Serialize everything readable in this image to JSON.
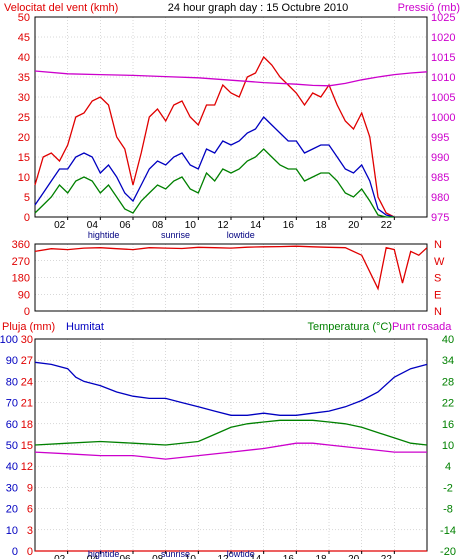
{
  "title": "24 hour graph day : 15 Octubre 2010",
  "colors": {
    "wind_gust": "#e00000",
    "wind_avg": "#0000c0",
    "wind_min": "#008000",
    "pressure": "#cc00cc",
    "direction": "#e00000",
    "humidity": "#0000c0",
    "temperature": "#008000",
    "dewpoint": "#cc00cc",
    "rain": "#e00000",
    "axis_text": "#000000",
    "frame": "#000000",
    "grid": "#b0b0b0"
  },
  "x_ticks": [
    "02",
    "04",
    "06",
    "08",
    "10",
    "12",
    "14",
    "16",
    "18",
    "20",
    "22"
  ],
  "x_events": [
    "hightide",
    "sunrise",
    "lowtide"
  ],
  "panel1": {
    "left_title": "Velocitat del vent (kmh)",
    "right_title": "Pressió (mb)"
  },
  "panel2": {
    "directions": [
      "N",
      "W",
      "S",
      "E",
      "N"
    ]
  },
  "panel3": {
    "rain_title": "Pluja (mm)",
    "humidity_title": "Humitat",
    "temp_title": "Temperatura (°C)",
    "dew_title": "Punt rosada"
  },
  "chart_data": [
    {
      "type": "line",
      "title": "",
      "xlabel": "",
      "x_unit": "hour",
      "xlim": [
        0,
        24
      ],
      "ylim": [
        0,
        50
      ],
      "y_ticks": [
        0,
        5,
        10,
        15,
        20,
        25,
        30,
        35,
        40,
        45,
        50
      ],
      "y2lim": [
        975,
        1025
      ],
      "y2_ticks": [
        975,
        980,
        985,
        990,
        995,
        1000,
        1005,
        1010,
        1015,
        1020,
        1025
      ],
      "grid": true,
      "series": [
        {
          "role": "wind_gust",
          "axis": "left",
          "x": [
            0,
            0.5,
            1,
            1.5,
            2,
            2.5,
            3,
            3.5,
            4,
            4.5,
            5,
            5.5,
            6,
            6.5,
            7,
            7.5,
            8,
            8.5,
            9,
            9.5,
            10,
            10.5,
            11,
            11.5,
            12,
            12.5,
            13,
            13.5,
            14,
            14.5,
            15,
            15.5,
            16,
            16.5,
            17,
            17.5,
            18,
            18.5,
            19,
            19.5,
            20,
            20.5,
            21,
            21.5,
            22
          ],
          "values": [
            8,
            15,
            16,
            14,
            18,
            25,
            26,
            29,
            30,
            28,
            20,
            17,
            8,
            16,
            25,
            27,
            24,
            28,
            29,
            25,
            23,
            28,
            28,
            33,
            31,
            30,
            35,
            36,
            40,
            38,
            35,
            33,
            31,
            28,
            31,
            30,
            33,
            28,
            24,
            22,
            26,
            20,
            5,
            1,
            0
          ]
        },
        {
          "role": "wind_avg",
          "axis": "left",
          "x": [
            0,
            0.5,
            1,
            1.5,
            2,
            2.5,
            3,
            3.5,
            4,
            4.5,
            5,
            5.5,
            6,
            6.5,
            7,
            7.5,
            8,
            8.5,
            9,
            9.5,
            10,
            10.5,
            11,
            11.5,
            12,
            12.5,
            13,
            13.5,
            14,
            14.5,
            15,
            15.5,
            16,
            16.5,
            17,
            17.5,
            18,
            18.5,
            19,
            19.5,
            20,
            20.5,
            21,
            21.5,
            22
          ],
          "values": [
            3,
            6,
            9,
            12,
            12,
            15,
            16,
            15,
            11,
            13,
            10,
            6,
            4,
            8,
            12,
            14,
            13,
            15,
            16,
            13,
            12,
            17,
            16,
            19,
            18,
            19,
            21,
            22,
            25,
            23,
            21,
            19,
            19,
            16,
            17,
            18,
            18,
            15,
            12,
            11,
            13,
            9,
            2,
            0.5,
            0
          ]
        },
        {
          "role": "wind_min",
          "axis": "left",
          "x": [
            0,
            0.5,
            1,
            1.5,
            2,
            2.5,
            3,
            3.5,
            4,
            4.5,
            5,
            5.5,
            6,
            6.5,
            7,
            7.5,
            8,
            8.5,
            9,
            9.5,
            10,
            10.5,
            11,
            11.5,
            12,
            12.5,
            13,
            13.5,
            14,
            14.5,
            15,
            15.5,
            16,
            16.5,
            17,
            17.5,
            18,
            18.5,
            19,
            19.5,
            20,
            20.5,
            21,
            21.5,
            22
          ],
          "values": [
            1,
            3,
            5,
            8,
            6,
            9,
            10,
            9,
            6,
            8,
            5,
            2,
            1,
            4,
            6,
            8,
            7,
            9,
            10,
            7,
            6,
            11,
            9,
            12,
            11,
            12,
            14,
            15,
            17,
            15,
            13,
            12,
            12,
            9,
            10,
            11,
            11,
            9,
            6,
            5,
            7,
            4,
            0.5,
            0,
            0
          ]
        },
        {
          "role": "pressure",
          "axis": "right",
          "x": [
            0,
            2,
            4,
            6,
            8,
            10,
            12,
            14,
            16,
            17,
            18,
            19,
            20,
            21,
            22,
            23,
            24
          ],
          "values": [
            1011.5,
            1010.8,
            1010.6,
            1010.4,
            1010.1,
            1009.8,
            1009.2,
            1008.6,
            1008.2,
            1007.9,
            1007.8,
            1008.4,
            1009.3,
            1010.0,
            1010.6,
            1011.0,
            1011.3
          ]
        }
      ]
    },
    {
      "type": "line",
      "title": "",
      "xlabel": "",
      "x_unit": "hour",
      "xlim": [
        0,
        24
      ],
      "ylim": [
        0,
        360
      ],
      "y_ticks": [
        0,
        90,
        180,
        270,
        360
      ],
      "grid": true,
      "series": [
        {
          "role": "direction",
          "x": [
            0,
            1,
            2,
            3,
            4,
            5,
            6,
            7,
            8,
            9,
            10,
            11,
            12,
            13,
            14,
            15,
            16,
            17,
            18,
            19,
            20,
            21,
            21.5,
            22,
            22.5,
            23,
            23.5,
            24
          ],
          "values": [
            320,
            335,
            330,
            338,
            340,
            335,
            330,
            340,
            338,
            336,
            342,
            340,
            338,
            343,
            345,
            346,
            348,
            345,
            342,
            340,
            300,
            120,
            340,
            330,
            150,
            320,
            300,
            340
          ]
        }
      ]
    },
    {
      "type": "line",
      "title": "",
      "xlabel": "",
      "x_unit": "hour",
      "xlim": [
        0,
        24
      ],
      "rain_ticks": [
        0,
        3,
        6,
        9,
        12,
        15,
        18,
        21,
        24,
        27,
        30
      ],
      "humidity_ticks": [
        0,
        10,
        20,
        30,
        40,
        50,
        60,
        70,
        80,
        90,
        100
      ],
      "temp_ticks": [
        -20,
        -14,
        -8,
        -2,
        4,
        10,
        16,
        22,
        28,
        34,
        40
      ],
      "grid": true,
      "series": [
        {
          "role": "humidity",
          "axis": "humidity",
          "ylim": [
            0,
            100
          ],
          "x": [
            0,
            1,
            2,
            2.5,
            3,
            4,
            5,
            6,
            7,
            8,
            9,
            10,
            11,
            12,
            13,
            14,
            15,
            16,
            17,
            18,
            19,
            20,
            21,
            22,
            23,
            24
          ],
          "values": [
            89,
            88,
            86,
            82,
            80,
            78,
            75,
            73,
            72,
            72,
            70,
            68,
            66,
            64,
            64,
            65,
            64,
            64,
            65,
            66,
            68,
            71,
            75,
            82,
            86,
            88
          ]
        },
        {
          "role": "temperature",
          "axis": "temp",
          "ylim": [
            -20,
            40
          ],
          "x": [
            0,
            2,
            4,
            6,
            8,
            10,
            11,
            12,
            13,
            14,
            15,
            16,
            17,
            18,
            19,
            20,
            21,
            22,
            23,
            24
          ],
          "values": [
            10,
            10.5,
            11,
            10.5,
            10,
            11,
            13,
            15,
            16,
            16.5,
            17,
            17,
            17,
            16.5,
            16,
            15,
            13.5,
            12,
            10.5,
            10
          ]
        },
        {
          "role": "dewpoint",
          "axis": "temp",
          "ylim": [
            -20,
            40
          ],
          "x": [
            0,
            2,
            4,
            6,
            8,
            10,
            12,
            14,
            16,
            17,
            18,
            20,
            22,
            24
          ],
          "values": [
            8,
            7.5,
            7,
            7,
            6,
            7,
            8,
            9,
            10.5,
            10.5,
            10,
            9,
            8,
            8
          ]
        },
        {
          "role": "rain",
          "axis": "rain",
          "ylim": [
            0,
            30
          ],
          "x": [
            0,
            24
          ],
          "values": [
            0,
            0
          ]
        }
      ]
    }
  ]
}
